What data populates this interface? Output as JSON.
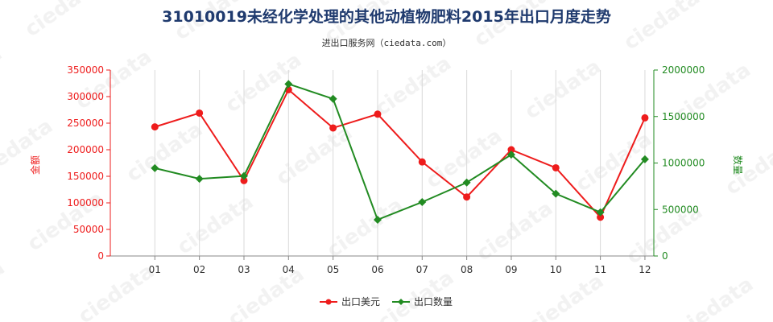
{
  "chart_data": {
    "type": "line",
    "title": "31010019未经化学处理的其他动植物肥料2015年出口月度走势",
    "subtitle": "进出口服务网（ciedata.com）",
    "categories": [
      "01",
      "02",
      "03",
      "04",
      "05",
      "06",
      "07",
      "08",
      "09",
      "10",
      "11",
      "12"
    ],
    "series": [
      {
        "name": "出口美元",
        "axis": "left",
        "color": "#ee1c1c",
        "marker": "circle",
        "values": [
          243000,
          269000,
          142000,
          313000,
          241000,
          267000,
          177000,
          111000,
          200000,
          166000,
          73000,
          260000
        ]
      },
      {
        "name": "出口数量",
        "axis": "right",
        "color": "#228b22",
        "marker": "diamond",
        "values": [
          945000,
          830000,
          860000,
          1850000,
          1690000,
          390000,
          580000,
          790000,
          1090000,
          670000,
          470000,
          1040000
        ]
      }
    ],
    "y_left": {
      "label": "金额",
      "range": [
        0,
        350000
      ],
      "ticks": [
        "0",
        "50000",
        "100000",
        "150000",
        "200000",
        "250000",
        "300000",
        "350000"
      ],
      "color": "#ee1c1c"
    },
    "y_right": {
      "label": "数量",
      "range": [
        0,
        2000000
      ],
      "ticks": [
        "0",
        "500000",
        "1000000",
        "1500000",
        "2000000"
      ],
      "color": "#228b22"
    },
    "grid": "vertical",
    "legend_position": "bottom",
    "watermark": "ciedata"
  }
}
